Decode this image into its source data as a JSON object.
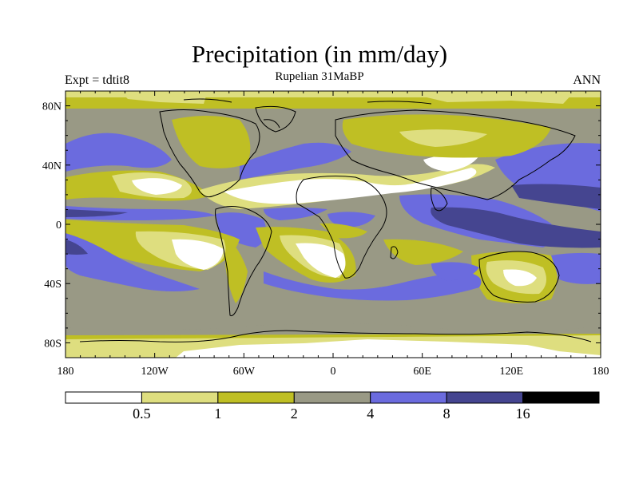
{
  "title": "Precipitation (in mm/day)",
  "subtitle": "Rupelian  31MaBP",
  "left_label": "Expt = tdtit8",
  "right_label": "ANN",
  "map": {
    "projection": "cylindrical-equidistant",
    "lon_range": [
      -180,
      180
    ],
    "lat_range": [
      -90,
      90
    ],
    "x_ticks": [
      {
        "value": -180,
        "label": "180"
      },
      {
        "value": -120,
        "label": "120W"
      },
      {
        "value": -60,
        "label": "60W"
      },
      {
        "value": 0,
        "label": "0"
      },
      {
        "value": 60,
        "label": "60E"
      },
      {
        "value": 120,
        "label": "120E"
      },
      {
        "value": 180,
        "label": "180"
      }
    ],
    "y_ticks": [
      {
        "value": 80,
        "label": "80N"
      },
      {
        "value": 40,
        "label": "40N"
      },
      {
        "value": 0,
        "label": "0"
      },
      {
        "value": -40,
        "label": "40S"
      },
      {
        "value": -80,
        "label": "80S"
      }
    ]
  },
  "colorbar": {
    "levels": [
      "0.5",
      "1",
      "2",
      "4",
      "8",
      "16"
    ],
    "colors": [
      "#ffffff",
      "#dede7f",
      "#bfbf24",
      "#999985",
      "#6b6bde",
      "#454590",
      "#000000"
    ]
  },
  "field_colors": {
    "c0": "#ffffff",
    "c1": "#dede7f",
    "c2": "#bfbf24",
    "c3": "#999985",
    "c4": "#6b6bde",
    "c5": "#454590",
    "c6": "#000000"
  }
}
